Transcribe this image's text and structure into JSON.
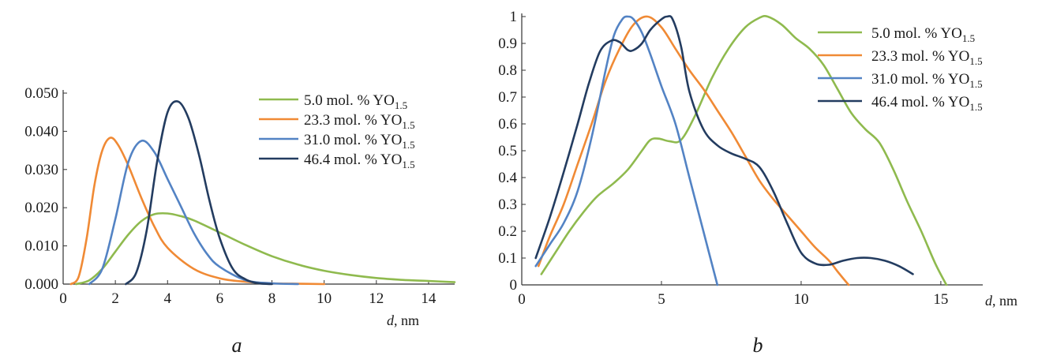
{
  "chart_data": [
    {
      "panel": "a",
      "type": "line",
      "caption": "a",
      "xlabel_var": "d",
      "xlabel_unit": ", nm",
      "xlim": [
        0,
        15
      ],
      "ylim": [
        0,
        0.05
      ],
      "xticks": [
        "0",
        "2",
        "4",
        "6",
        "8",
        "10",
        "12",
        "14"
      ],
      "xtick_values": [
        0,
        2,
        4,
        6,
        8,
        10,
        12,
        14
      ],
      "yticks": [
        "0.000",
        "0.010",
        "0.020",
        "0.030",
        "0.040",
        "0.050"
      ],
      "ytick_values": [
        0,
        0.01,
        0.02,
        0.03,
        0.04,
        0.05
      ],
      "legend": [
        {
          "prefix": "5.0 mol. % YO",
          "sub": "1.5"
        },
        {
          "prefix": "23.3 mol. % YO",
          "sub": "1.5"
        },
        {
          "prefix": "31.0 mol. % YO",
          "sub": "1.5"
        },
        {
          "prefix": "46.4 mol. % YO",
          "sub": "1.5"
        }
      ],
      "series": [
        {
          "name": "5.0 mol. % YO1.5",
          "color": "#8fba4e",
          "x": [
            0.5,
            1.0,
            1.5,
            2.0,
            2.5,
            3.0,
            3.5,
            4.0,
            4.5,
            5.0,
            6.0,
            7.0,
            8.0,
            9.0,
            10.0,
            11.0,
            12.0,
            13.0,
            14.0,
            15.0
          ],
          "y": [
            0.0,
            0.001,
            0.004,
            0.0085,
            0.013,
            0.0165,
            0.0183,
            0.0185,
            0.0178,
            0.0167,
            0.0135,
            0.0102,
            0.0073,
            0.0051,
            0.0035,
            0.0024,
            0.0016,
            0.0011,
            0.0008,
            0.0005
          ]
        },
        {
          "name": "23.3 mol. % YO1.5",
          "color": "#f08a35",
          "x": [
            0.3,
            0.6,
            0.9,
            1.2,
            1.5,
            1.8,
            2.1,
            2.5,
            3.0,
            3.5,
            4.0,
            5.0,
            6.0,
            7.0,
            8.0,
            9.0,
            10.0
          ],
          "y": [
            0.0,
            0.002,
            0.012,
            0.026,
            0.035,
            0.0383,
            0.0365,
            0.031,
            0.0225,
            0.015,
            0.0095,
            0.004,
            0.0015,
            0.0006,
            0.0002,
            0.0001,
            0.0
          ]
        },
        {
          "name": "31.0 mol. % YO1.5",
          "color": "#5383c4",
          "x": [
            1.0,
            1.5,
            2.0,
            2.5,
            3.0,
            3.5,
            4.0,
            4.5,
            5.0,
            5.5,
            6.0,
            7.0,
            8.0,
            9.0
          ],
          "y": [
            0.0,
            0.004,
            0.017,
            0.032,
            0.0375,
            0.0345,
            0.0275,
            0.0205,
            0.0135,
            0.008,
            0.0045,
            0.001,
            0.0002,
            0.0
          ]
        },
        {
          "name": "46.4 mol. % YO1.5",
          "color": "#233c60",
          "x": [
            2.4,
            2.8,
            3.2,
            3.6,
            4.0,
            4.4,
            4.8,
            5.2,
            5.6,
            6.0,
            6.5,
            7.0,
            7.5,
            8.0
          ],
          "y": [
            0.0,
            0.003,
            0.014,
            0.032,
            0.045,
            0.0478,
            0.0435,
            0.034,
            0.022,
            0.012,
            0.004,
            0.0012,
            0.0002,
            0.0
          ]
        }
      ]
    },
    {
      "panel": "b",
      "type": "line",
      "caption": "b",
      "xlabel_var": "d",
      "xlabel_unit": ", nm",
      "xlim": [
        0,
        16.5
      ],
      "ylim": [
        0,
        1
      ],
      "xticks": [
        "0",
        "5",
        "10",
        "15"
      ],
      "xtick_values": [
        0,
        5,
        10,
        15
      ],
      "yticks": [
        "0",
        "0.1",
        "0.2",
        "0.3",
        "0.4",
        "0.5",
        "0.6",
        "0.7",
        "0.8",
        "0.9",
        "1"
      ],
      "ytick_values": [
        0,
        0.1,
        0.2,
        0.3,
        0.4,
        0.5,
        0.6,
        0.7,
        0.8,
        0.9,
        1
      ],
      "legend": [
        {
          "prefix": "5.0 mol. % YO",
          "sub": "1.5"
        },
        {
          "prefix": "23.3 mol. % YO",
          "sub": "1.5"
        },
        {
          "prefix": "31.0 mol. % YO",
          "sub": "1.5"
        },
        {
          "prefix": "46.4 mol. % YO",
          "sub": "1.5"
        }
      ],
      "series": [
        {
          "name": "5.0 mol. % YO1.5",
          "color": "#8fba4e",
          "x": [
            0.7,
            1.2,
            1.7,
            2.2,
            2.7,
            3.3,
            3.8,
            4.3,
            4.6,
            4.9,
            5.3,
            5.7,
            6.2,
            6.8,
            7.4,
            8.0,
            8.5,
            8.8,
            9.3,
            9.8,
            10.3,
            10.8,
            11.3,
            11.8,
            12.3,
            12.8,
            13.3,
            13.8,
            14.3,
            14.8,
            15.2
          ],
          "y": [
            0.04,
            0.12,
            0.2,
            0.27,
            0.33,
            0.38,
            0.43,
            0.5,
            0.54,
            0.545,
            0.535,
            0.54,
            0.63,
            0.77,
            0.88,
            0.96,
            0.995,
            1.0,
            0.97,
            0.92,
            0.88,
            0.82,
            0.73,
            0.64,
            0.58,
            0.53,
            0.43,
            0.31,
            0.2,
            0.08,
            0.0
          ]
        },
        {
          "name": "23.3 mol. % YO1.5",
          "color": "#f08a35",
          "x": [
            0.6,
            1.0,
            1.5,
            2.0,
            2.5,
            3.0,
            3.5,
            4.0,
            4.5,
            5.0,
            5.5,
            6.0,
            6.5,
            7.0,
            7.5,
            8.0,
            8.5,
            9.0,
            9.5,
            10.0,
            10.5,
            11.0,
            11.3,
            11.7
          ],
          "y": [
            0.07,
            0.18,
            0.3,
            0.45,
            0.6,
            0.76,
            0.88,
            0.97,
            1.0,
            0.96,
            0.88,
            0.8,
            0.73,
            0.65,
            0.57,
            0.48,
            0.39,
            0.32,
            0.26,
            0.2,
            0.14,
            0.09,
            0.05,
            0.0
          ]
        },
        {
          "name": "31.0 mol. % YO1.5",
          "color": "#5383c4",
          "x": [
            0.5,
            1.0,
            1.5,
            2.0,
            2.5,
            3.0,
            3.3,
            3.6,
            3.8,
            4.0,
            4.3,
            4.6,
            5.0,
            5.5,
            6.0,
            6.5,
            7.0
          ],
          "y": [
            0.07,
            0.15,
            0.23,
            0.35,
            0.55,
            0.8,
            0.93,
            0.99,
            1.0,
            0.99,
            0.94,
            0.86,
            0.74,
            0.6,
            0.4,
            0.2,
            0.0
          ]
        },
        {
          "name": "46.4 mol. % YO1.5",
          "color": "#233c60",
          "x": [
            0.5,
            1.0,
            1.5,
            2.0,
            2.4,
            2.8,
            3.2,
            3.5,
            3.8,
            4.0,
            4.3,
            4.6,
            5.0,
            5.2,
            5.4,
            5.7,
            6.0,
            6.5,
            7.0,
            7.5,
            8.0,
            8.5,
            9.0,
            9.5,
            10.0,
            10.5,
            11.0,
            11.5,
            12.0,
            12.5,
            13.0,
            13.5,
            14.0
          ],
          "y": [
            0.1,
            0.25,
            0.42,
            0.6,
            0.75,
            0.87,
            0.91,
            0.905,
            0.875,
            0.875,
            0.9,
            0.95,
            0.99,
            1.0,
            0.99,
            0.89,
            0.72,
            0.58,
            0.52,
            0.49,
            0.47,
            0.44,
            0.35,
            0.23,
            0.12,
            0.08,
            0.075,
            0.09,
            0.1,
            0.1,
            0.09,
            0.07,
            0.04
          ]
        }
      ]
    }
  ]
}
